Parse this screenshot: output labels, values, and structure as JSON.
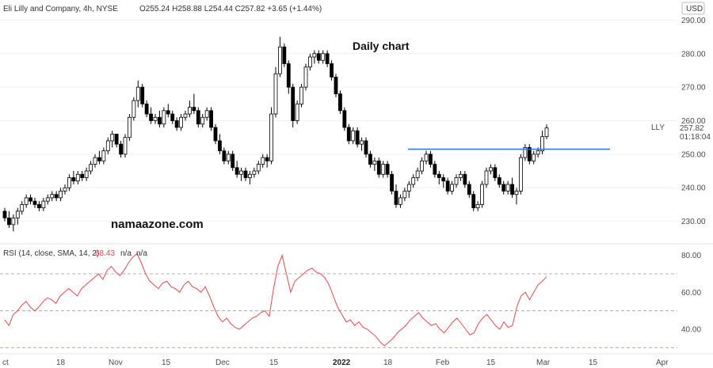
{
  "header": {
    "symbol_line": "Eli Lilly and Company, 4h, NYSE",
    "ohlc": "O255.24  H258.88  L254.44  C257.82  +3.65 (+1.44%)",
    "currency": "USD"
  },
  "annotations": {
    "title": "Daily chart",
    "watermark": "namaazone.com"
  },
  "price_scale": {
    "ticks": [
      "290.00",
      "280.00",
      "270.00",
      "260.00",
      "250.00",
      "240.00",
      "230.00"
    ],
    "last_price": "257.82",
    "countdown": "01:18:04",
    "ticker": "LLY"
  },
  "rsi": {
    "label": "RSI (14, close, SMA, 14, 2)",
    "value": "68.43",
    "na1": "n/a",
    "na2": "n/a",
    "ticks": [
      "80.00",
      "60.00",
      "40.00"
    ]
  },
  "time_axis": {
    "labels": [
      "ct",
      "18",
      "Nov",
      "15",
      "Dec",
      "15",
      "2022",
      "18",
      "Feb",
      "15",
      "Mar",
      "15",
      "Apr"
    ]
  },
  "chart_data": [
    {
      "type": "candlestick",
      "title": "Eli Lilly and Company, 4h, NYSE",
      "ylim": [
        224,
        296
      ],
      "up_color": "#ffffff",
      "down_color": "#000000",
      "candles": [
        [
          233,
          234,
          230,
          231
        ],
        [
          231,
          233,
          228,
          229
        ],
        [
          229,
          232,
          227,
          231
        ],
        [
          231,
          234,
          229,
          233
        ],
        [
          233,
          236,
          232,
          235
        ],
        [
          235,
          238,
          234,
          237
        ],
        [
          237,
          238,
          235,
          236
        ],
        [
          236,
          237,
          234,
          235
        ],
        [
          235,
          236,
          233,
          234
        ],
        [
          234,
          237,
          233,
          236
        ],
        [
          236,
          238,
          235,
          237
        ],
        [
          237,
          239,
          236,
          238
        ],
        [
          238,
          239,
          236,
          237
        ],
        [
          237,
          240,
          236,
          239
        ],
        [
          239,
          241,
          238,
          240
        ],
        [
          240,
          244,
          239,
          243
        ],
        [
          243,
          245,
          241,
          242
        ],
        [
          242,
          245,
          241,
          244
        ],
        [
          244,
          245,
          242,
          243
        ],
        [
          243,
          246,
          242,
          245
        ],
        [
          245,
          248,
          244,
          247
        ],
        [
          247,
          250,
          246,
          249
        ],
        [
          249,
          251,
          247,
          248
        ],
        [
          248,
          252,
          247,
          251
        ],
        [
          251,
          255,
          250,
          254
        ],
        [
          254,
          257,
          252,
          256
        ],
        [
          256,
          256,
          252,
          253
        ],
        [
          253,
          254,
          249,
          250
        ],
        [
          250,
          256,
          249,
          255
        ],
        [
          255,
          262,
          254,
          261
        ],
        [
          261,
          267,
          260,
          266
        ],
        [
          266,
          272,
          264,
          270
        ],
        [
          270,
          271,
          264,
          265
        ],
        [
          265,
          266,
          261,
          262
        ],
        [
          262,
          264,
          259,
          260
        ],
        [
          260,
          262,
          259,
          261
        ],
        [
          261,
          263,
          258,
          259
        ],
        [
          259,
          264,
          258,
          263
        ],
        [
          263,
          265,
          261,
          262
        ],
        [
          262,
          263,
          259,
          260
        ],
        [
          260,
          261,
          257,
          258
        ],
        [
          258,
          262,
          257,
          261
        ],
        [
          261,
          263,
          260,
          262
        ],
        [
          262,
          266,
          261,
          264
        ],
        [
          264,
          268,
          262,
          263
        ],
        [
          263,
          264,
          258,
          259
        ],
        [
          259,
          262,
          258,
          261
        ],
        [
          261,
          264,
          260,
          263
        ],
        [
          263,
          264,
          257,
          258
        ],
        [
          258,
          259,
          253,
          254
        ],
        [
          254,
          256,
          250,
          251
        ],
        [
          251,
          252,
          247,
          248
        ],
        [
          248,
          251,
          247,
          250
        ],
        [
          250,
          251,
          245,
          246
        ],
        [
          246,
          248,
          243,
          244
        ],
        [
          244,
          246,
          242,
          245
        ],
        [
          245,
          246,
          242,
          243
        ],
        [
          243,
          245,
          241,
          244
        ],
        [
          244,
          246,
          243,
          245
        ],
        [
          245,
          248,
          244,
          247
        ],
        [
          247,
          250,
          246,
          249
        ],
        [
          249,
          250,
          246,
          248
        ],
        [
          248,
          264,
          247,
          262
        ],
        [
          262,
          276,
          261,
          274
        ],
        [
          274,
          285,
          273,
          282
        ],
        [
          282,
          283,
          276,
          277
        ],
        [
          277,
          278,
          268,
          270
        ],
        [
          270,
          271,
          258,
          260
        ],
        [
          260,
          266,
          259,
          265
        ],
        [
          265,
          271,
          264,
          270
        ],
        [
          270,
          277,
          269,
          276
        ],
        [
          276,
          280,
          275,
          279
        ],
        [
          279,
          281,
          277,
          280
        ],
        [
          280,
          281,
          277,
          278
        ],
        [
          278,
          281,
          277,
          280
        ],
        [
          280,
          281,
          276,
          277
        ],
        [
          277,
          278,
          272,
          273
        ],
        [
          273,
          274,
          267,
          268
        ],
        [
          268,
          269,
          262,
          263
        ],
        [
          263,
          264,
          257,
          258
        ],
        [
          258,
          259,
          253,
          254
        ],
        [
          254,
          258,
          253,
          257
        ],
        [
          257,
          258,
          252,
          253
        ],
        [
          253,
          255,
          251,
          254
        ],
        [
          254,
          255,
          249,
          250
        ],
        [
          250,
          251,
          246,
          247
        ],
        [
          247,
          249,
          245,
          248
        ],
        [
          248,
          249,
          243,
          244
        ],
        [
          244,
          248,
          243,
          247
        ],
        [
          247,
          248,
          243,
          244
        ],
        [
          244,
          245,
          238,
          239
        ],
        [
          239,
          241,
          234,
          235
        ],
        [
          235,
          238,
          234,
          237
        ],
        [
          237,
          240,
          236,
          239
        ],
        [
          239,
          242,
          237,
          241
        ],
        [
          241,
          244,
          240,
          243
        ],
        [
          243,
          246,
          242,
          245
        ],
        [
          245,
          249,
          244,
          248
        ],
        [
          248,
          251,
          247,
          250
        ],
        [
          250,
          251,
          246,
          247
        ],
        [
          247,
          248,
          243,
          244
        ],
        [
          244,
          245,
          241,
          243
        ],
        [
          243,
          244,
          240,
          242
        ],
        [
          242,
          243,
          238,
          239
        ],
        [
          239,
          242,
          238,
          241
        ],
        [
          241,
          244,
          240,
          243
        ],
        [
          243,
          245,
          242,
          244
        ],
        [
          244,
          245,
          240,
          241
        ],
        [
          241,
          242,
          237,
          238
        ],
        [
          238,
          239,
          233,
          234
        ],
        [
          234,
          236,
          233,
          235
        ],
        [
          235,
          242,
          234,
          241
        ],
        [
          241,
          246,
          240,
          245
        ],
        [
          245,
          247,
          244,
          246
        ],
        [
          246,
          247,
          242,
          243
        ],
        [
          243,
          244,
          240,
          241
        ],
        [
          241,
          242,
          238,
          239
        ],
        [
          239,
          242,
          238,
          241
        ],
        [
          241,
          243,
          237,
          238
        ],
        [
          238,
          240,
          235,
          239
        ],
        [
          239,
          250,
          238,
          249
        ],
        [
          249,
          253,
          248,
          252
        ],
        [
          252,
          253,
          247,
          248
        ],
        [
          248,
          251,
          247,
          250
        ],
        [
          250,
          252,
          249,
          251
        ],
        [
          251,
          257,
          250,
          255.24
        ],
        [
          255.24,
          258.88,
          254.44,
          257.82
        ]
      ],
      "hline": {
        "value": 251.5,
        "color": "#2f6fe4"
      }
    },
    {
      "type": "line",
      "title": "RSI (14, close, SMA, 14, 2)",
      "ylim": [
        28,
        85
      ],
      "levels": [
        70,
        50,
        30
      ],
      "series": [
        {
          "color": "#e5484d",
          "values": [
            45,
            42,
            48,
            50,
            53,
            55,
            52,
            50,
            52,
            55,
            57,
            56,
            54,
            58,
            60,
            62,
            60,
            58,
            62,
            64,
            66,
            68,
            70,
            67,
            72,
            74,
            71,
            69,
            72,
            76,
            79,
            81,
            76,
            70,
            66,
            64,
            62,
            65,
            66,
            63,
            62,
            60,
            64,
            66,
            63,
            62,
            60,
            63,
            58,
            52,
            47,
            44,
            46,
            43,
            41,
            40,
            42,
            44,
            46,
            47,
            49,
            50,
            47,
            62,
            74,
            80,
            70,
            60,
            66,
            68,
            70,
            72,
            73,
            71,
            70,
            68,
            64,
            58,
            52,
            48,
            44,
            45,
            42,
            44,
            41,
            40,
            38,
            36,
            33,
            31,
            33,
            35,
            38,
            40,
            42,
            45,
            47,
            49,
            46,
            44,
            42,
            43,
            40,
            38,
            41,
            44,
            46,
            43,
            40,
            37,
            38,
            43,
            46,
            48,
            45,
            42,
            40,
            44,
            41,
            42,
            52,
            58,
            60,
            56,
            60,
            64,
            66,
            68.43
          ]
        }
      ]
    }
  ]
}
